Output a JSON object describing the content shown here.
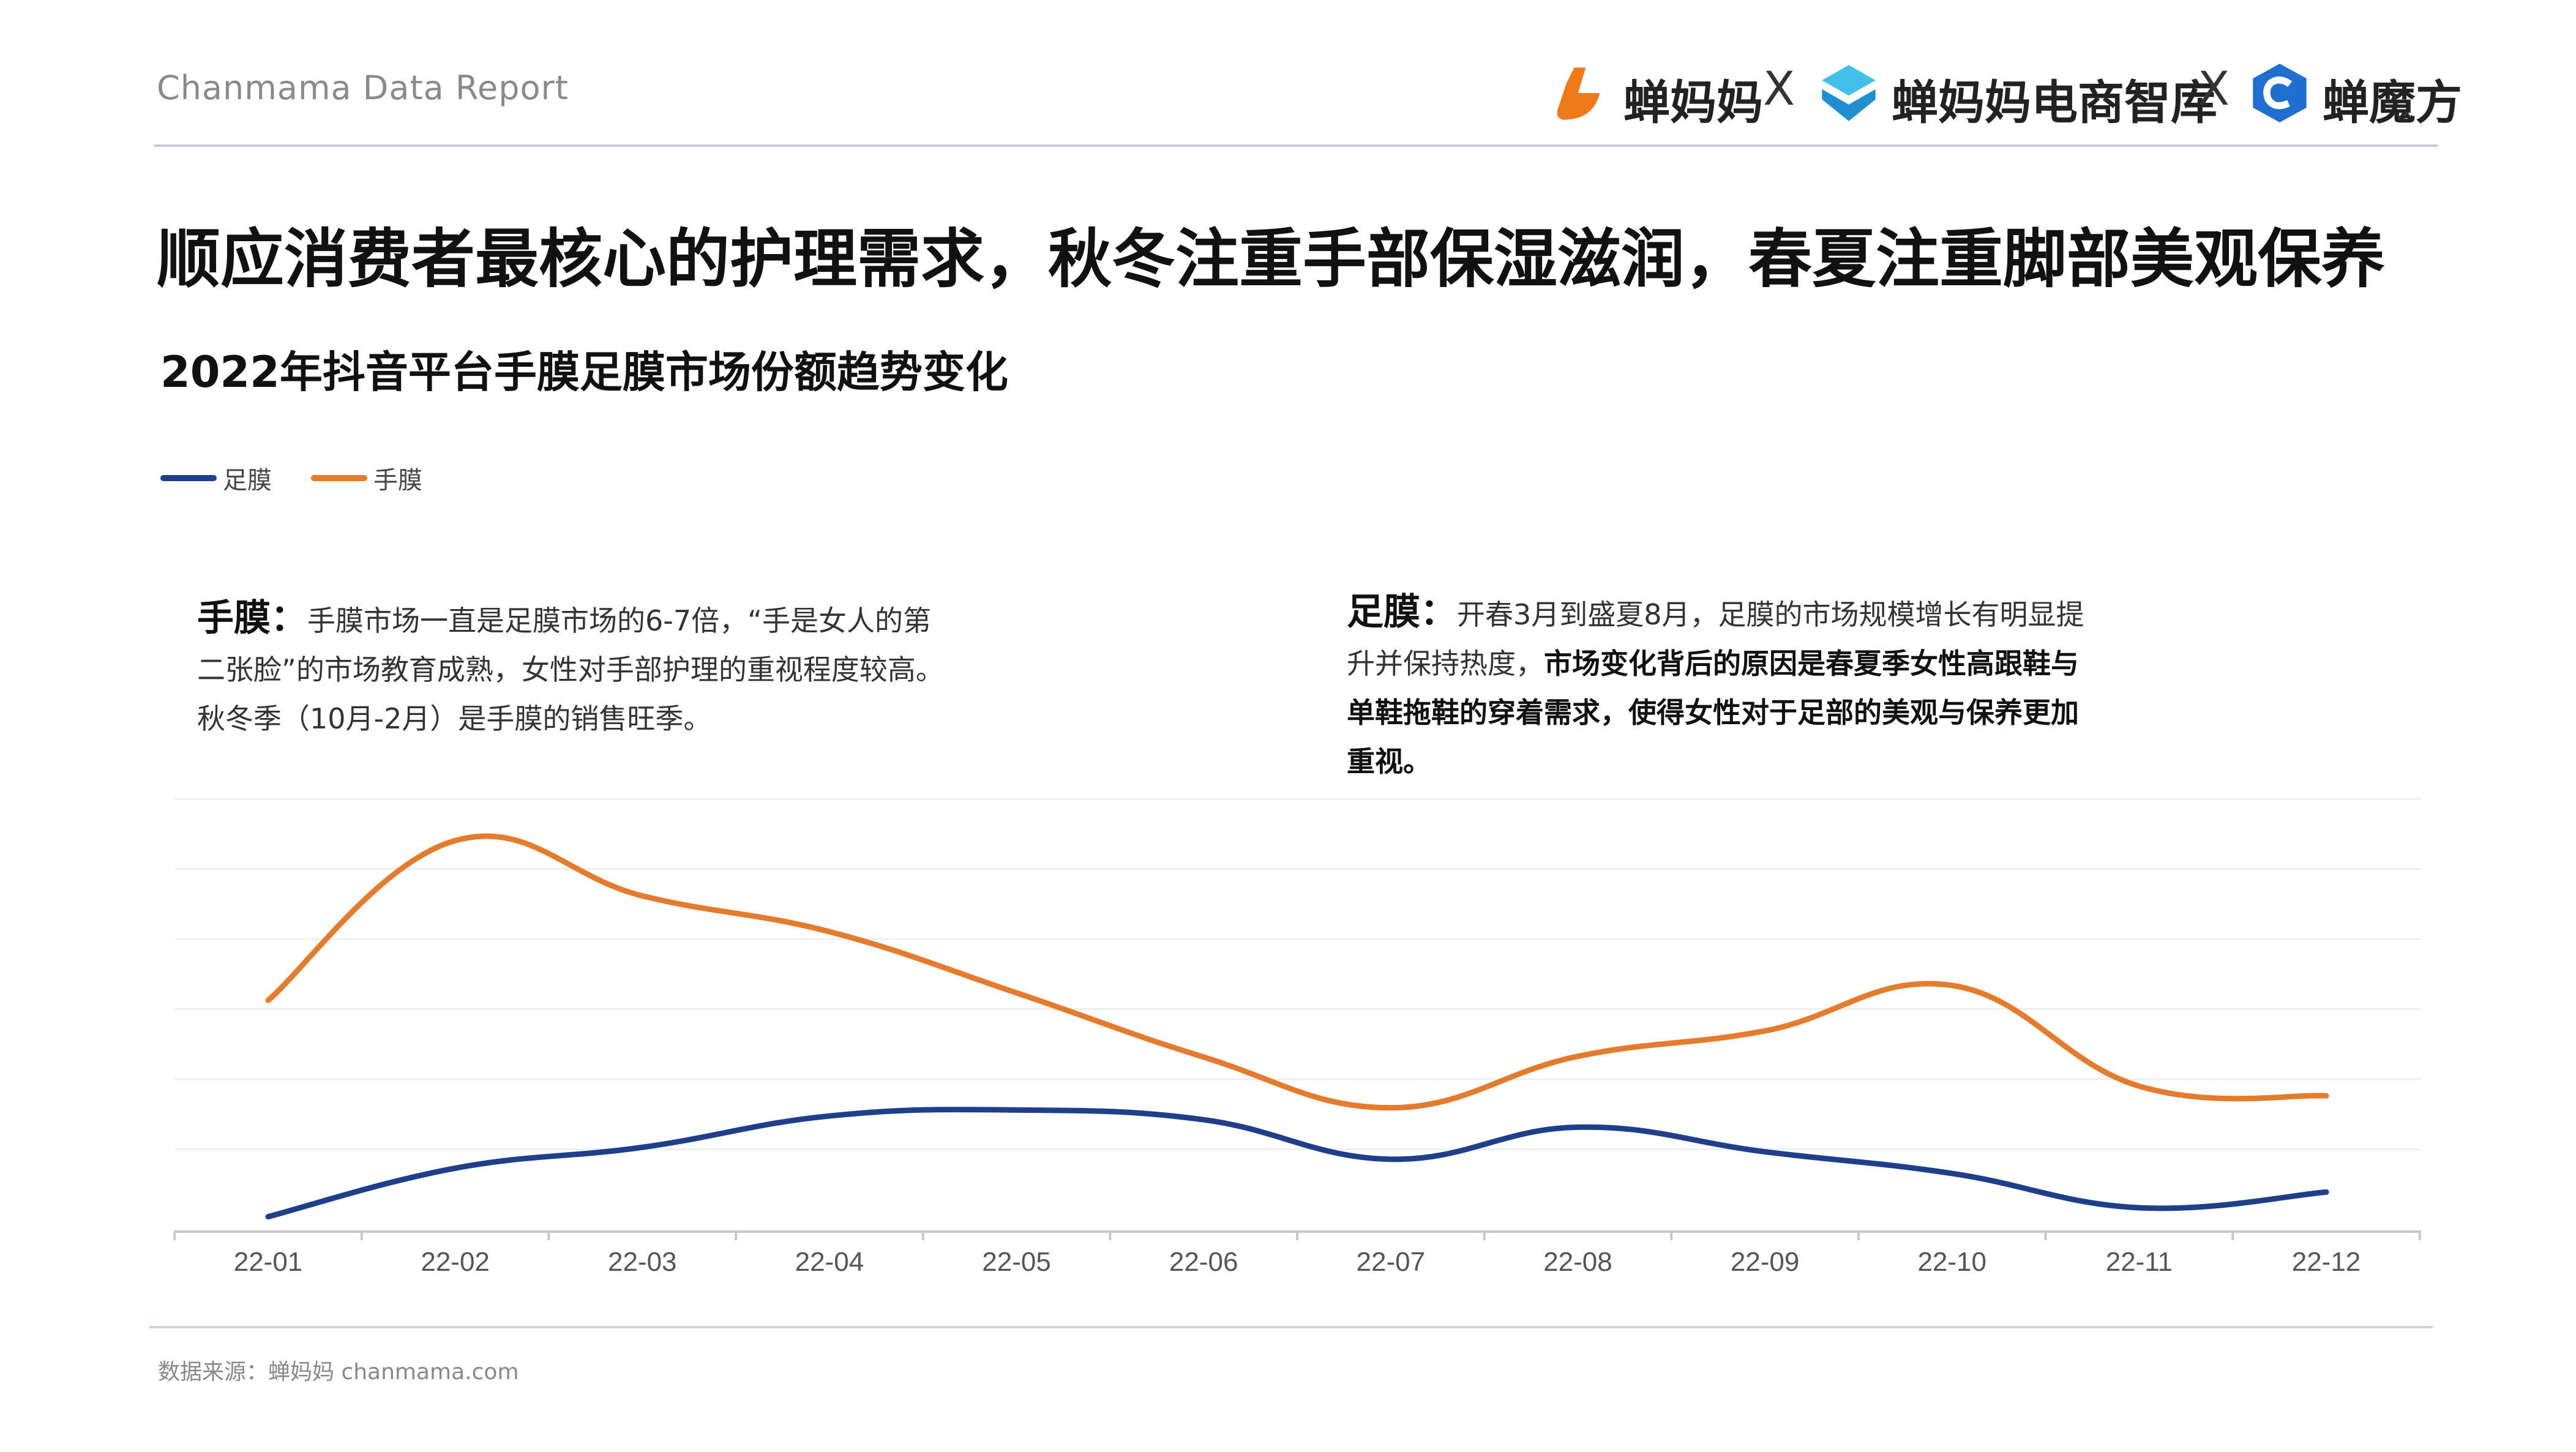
{
  "header": {
    "report_name": "Chanmama Data Report",
    "brand_1": "蝉妈妈",
    "separator": "X",
    "brand_2": "蝉妈妈电商智库",
    "brand_3": "蝉魔方",
    "colors": {
      "brand_1": "#f07a1a",
      "brand_2": "#2aa6e0",
      "brand_3": "#1f6fd0"
    }
  },
  "main_title": "顺应消费者最核心的护理需求，秋冬注重手部保湿滋润，春夏注重脚部美观保养",
  "notes": {
    "hand": {
      "lead": "手膜：",
      "line1": "手膜市场一直是足膜市场的6-7倍，“手是女人的第",
      "line2": "二张脸”的市场教育成熟，女性对手部护理的重视程度较高。",
      "line3": "秋冬季（10月-2月）是手膜的销售旺季。"
    },
    "foot": {
      "lead": "足膜：",
      "line1": "开春3月到盛夏8月，足膜的市场规模增长有明显提",
      "line2_plain": "升并保持热度，",
      "line2_bold": "市场变化背后的原因是春夏季女性高跟鞋与",
      "line3_bold": "单鞋拖鞋的穿着需求，使得女性对于足部的美观与保养更加",
      "line4_bold": "重视。"
    }
  },
  "chart_data": {
    "type": "line",
    "title": "2022年抖音平台手膜足膜市场份额趋势变化",
    "xlabel": "",
    "ylabel": "",
    "categories": [
      "22-01",
      "22-02",
      "22-03",
      "22-04",
      "22-05",
      "22-06",
      "22-07",
      "22-08",
      "22-09",
      "22-10",
      "22-11",
      "22-12"
    ],
    "series": [
      {
        "name": "足膜",
        "color": "#1f3f8a",
        "values": [
          2,
          8.5,
          11.3,
          15.5,
          16.3,
          15,
          9.7,
          14,
          10.7,
          7.8,
          3.2,
          5.3
        ]
      },
      {
        "name": "手膜",
        "color": "#e57b2c",
        "values": [
          31,
          52.4,
          45,
          40.2,
          32,
          23.4,
          16.6,
          23.5,
          26.9,
          33,
          19.5,
          18.2
        ]
      }
    ],
    "ylim": [
      0,
      58
    ],
    "grid": true,
    "legend_position": "top-left",
    "axis_line_color": "#c8c8c8",
    "grid_color": "#efefef"
  },
  "footer": {
    "source": "数据来源：蝉妈妈 chanmama.com"
  }
}
